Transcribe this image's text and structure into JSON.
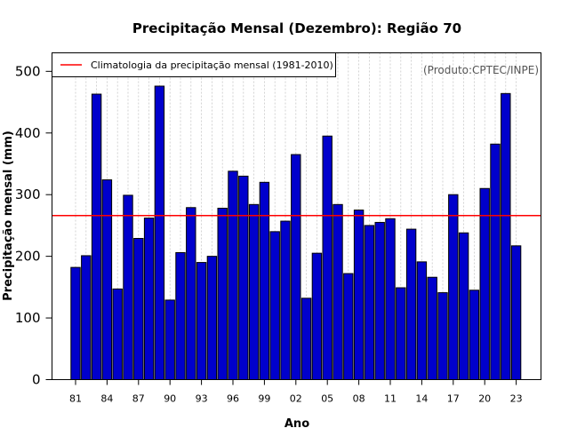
{
  "chart_data": {
    "type": "bar",
    "title": "Precipitação Mensal (Dezembro): Região 70",
    "xlabel": "Ano",
    "ylabel": "Precipitação mensal (mm)",
    "annotation": "(Produto:CPTEC/INPE)",
    "ylim": [
      0,
      530
    ],
    "yticks": [
      0,
      100,
      200,
      300,
      400,
      500
    ],
    "xtick_labels": [
      "81",
      "84",
      "87",
      "90",
      "93",
      "96",
      "99",
      "02",
      "05",
      "08",
      "11",
      "14",
      "17",
      "20",
      "23"
    ],
    "xtick_every": 3,
    "categories": [
      "1981",
      "1982",
      "1983",
      "1984",
      "1985",
      "1986",
      "1987",
      "1988",
      "1989",
      "1990",
      "1991",
      "1992",
      "1993",
      "1994",
      "1995",
      "1996",
      "1997",
      "1998",
      "1999",
      "2000",
      "2001",
      "2002",
      "2003",
      "2004",
      "2005",
      "2006",
      "2007",
      "2008",
      "2009",
      "2010",
      "2011",
      "2012",
      "2013",
      "2014",
      "2015",
      "2016",
      "2017",
      "2018",
      "2019",
      "2020",
      "2021",
      "2022",
      "2023"
    ],
    "values": [
      182,
      201,
      463,
      324,
      147,
      299,
      229,
      262,
      476,
      129,
      206,
      279,
      190,
      200,
      278,
      338,
      330,
      284,
      320,
      240,
      257,
      365,
      132,
      205,
      395,
      284,
      172,
      275,
      250,
      255,
      261,
      149,
      244,
      191,
      166,
      141,
      300,
      238,
      145,
      310,
      382,
      464,
      217
    ],
    "climatology": {
      "label": "Climatologia da precipitação mensal (1981-2010)",
      "value": 266,
      "color": "#ff0000"
    },
    "bar_color": "#0000cc",
    "bar_edge_color": "#000000",
    "grid": "vertical-dotted",
    "legend_position": "top-left"
  }
}
